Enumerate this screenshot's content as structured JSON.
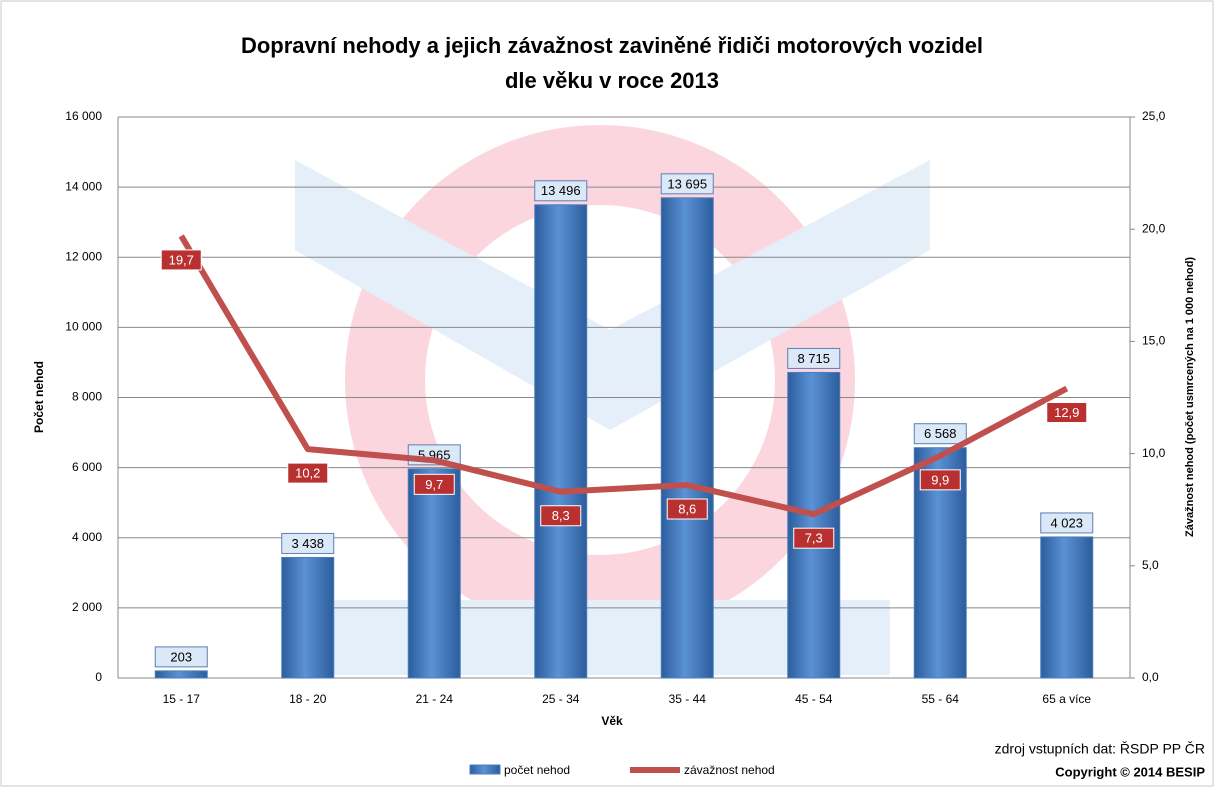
{
  "chart_data": {
    "type": "bar+line",
    "title": [
      {
        "text": "Dopravní nehody a jejich závažnost",
        "underline": false
      },
      {
        "text": "zaviněné řidiči motorových vozidel",
        "underline": true
      },
      {
        "text": "dle věku",
        "underline": true
      },
      {
        "text": "v roce 2013",
        "underline": false
      }
    ],
    "x_label": "Věk",
    "y_label": "Počet nehod",
    "y2_label": "Závažnost  nehod  (počet usmrcených  na 1 000 nehod)",
    "categories": [
      "15 - 17",
      "18 - 20",
      "21 - 24",
      "25 - 34",
      "35 - 44",
      "45 - 54",
      "55 - 64",
      "65 a více"
    ],
    "series": [
      {
        "name": "počet nehod",
        "type": "bar",
        "color": "#4a7ebb",
        "values": [
          203,
          3438,
          5965,
          13496,
          13695,
          8715,
          6568,
          4023
        ],
        "value_labels": [
          "203",
          "3 438",
          "5 965",
          "13 496",
          "13 695",
          "8 715",
          "6 568",
          "4 023"
        ]
      },
      {
        "name": "závažnost nehod",
        "type": "line",
        "axis": "y2",
        "color": "#c0504d",
        "values": [
          19.7,
          10.2,
          9.7,
          8.3,
          8.6,
          7.3,
          9.9,
          12.9
        ],
        "value_labels": [
          "19,7",
          "10,2",
          "9,7",
          "8,3",
          "8,6",
          "7,3",
          "9,9",
          "12,9"
        ]
      }
    ],
    "ylim": [
      0,
      16000
    ],
    "yticks": [
      0,
      {
        "value": 2000,
        "label": "2 000"
      },
      {
        "value": 4000,
        "label": "4 000"
      },
      {
        "value": 6000,
        "label": "6 000"
      },
      {
        "value": 8000,
        "label": "8 000"
      },
      {
        "value": 10000,
        "label": "10 000"
      },
      {
        "value": 12000,
        "label": "12 000"
      },
      {
        "value": 14000,
        "label": "14 000"
      },
      {
        "value": 16000,
        "label": "16 000"
      }
    ],
    "y2lim": [
      0,
      25
    ],
    "y2ticks": [
      {
        "value": 0,
        "label": "0,0"
      },
      {
        "value": 5,
        "label": "5,0"
      },
      {
        "value": 10,
        "label": "10,0"
      },
      {
        "value": 15,
        "label": "15,0"
      },
      {
        "value": 20,
        "label": "20,0"
      },
      {
        "value": 25,
        "label": "25,0"
      }
    ],
    "grid": true,
    "legend": "bottom",
    "source": "zdroj vstupních dat: ŘSDP PP ČR",
    "copyright": "Copyright © 2014 BESIP"
  }
}
